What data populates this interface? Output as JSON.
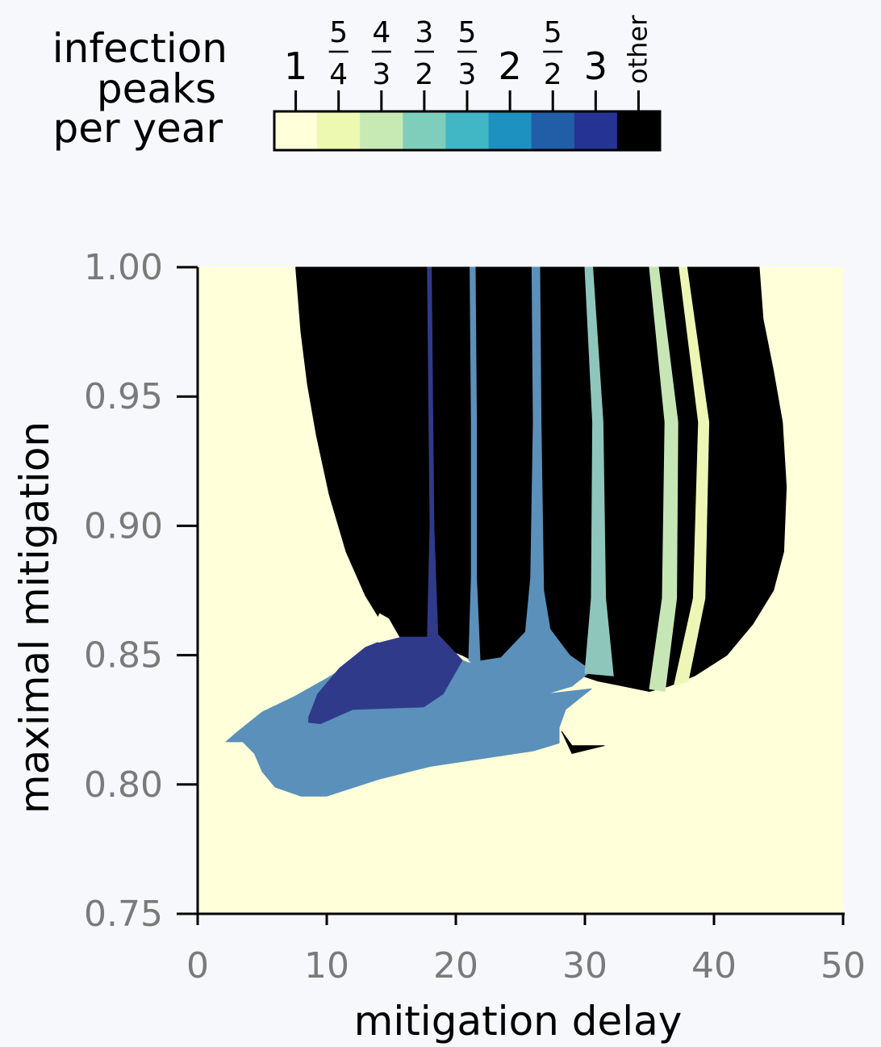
{
  "colors": {
    "background": "#f7f8fb",
    "other": "#000000",
    "axis": "#000000",
    "tick_label": "#7a7a7a"
  },
  "legend": {
    "title_lines": [
      "infection",
      "peaks",
      "per year"
    ],
    "bins": [
      {
        "label": "1",
        "color": "#ffffd9"
      },
      {
        "num": "5",
        "den": "4",
        "color": "#edf8b1"
      },
      {
        "num": "4",
        "den": "3",
        "color": "#c7e9b4"
      },
      {
        "num": "3",
        "den": "2",
        "color": "#7fcdbb"
      },
      {
        "num": "5",
        "den": "3",
        "color": "#41b6c4"
      },
      {
        "label": "2",
        "color": "#1d91c0"
      },
      {
        "num": "5",
        "den": "2",
        "color": "#225ea8"
      },
      {
        "label": "3",
        "color": "#253494"
      },
      {
        "label": "other",
        "color": "#000000"
      }
    ]
  },
  "chart_data": {
    "type": "heatmap",
    "xlabel": "mitigation delay",
    "ylabel": "maximal mitigation",
    "xlim": [
      0,
      50
    ],
    "ylim": [
      0.75,
      1.0
    ],
    "xticks": [
      "0",
      "10",
      "20",
      "30",
      "40",
      "50"
    ],
    "yticks": [
      "0.75",
      "0.80",
      "0.85",
      "0.90",
      "0.95",
      "1.00"
    ],
    "background_class": "1",
    "regions": [
      {
        "name": "other-region",
        "class": "other",
        "color": "#000000",
        "points": [
          [
            7.6,
            1.0
          ],
          [
            8.0,
            0.975
          ],
          [
            8.5,
            0.955
          ],
          [
            9.2,
            0.935
          ],
          [
            10.2,
            0.912
          ],
          [
            11.5,
            0.89
          ],
          [
            13.0,
            0.873
          ],
          [
            14.6,
            0.86
          ],
          [
            16.0,
            0.856
          ],
          [
            17.8,
            0.855
          ],
          [
            19.0,
            0.853
          ],
          [
            20.5,
            0.85
          ],
          [
            22.0,
            0.846
          ],
          [
            23.8,
            0.845
          ],
          [
            25.5,
            0.847
          ],
          [
            27.0,
            0.852
          ],
          [
            28.3,
            0.848
          ],
          [
            29.8,
            0.842
          ],
          [
            31.0,
            0.84
          ],
          [
            33.0,
            0.838
          ],
          [
            35.0,
            0.836
          ],
          [
            36.5,
            0.838
          ],
          [
            38.5,
            0.842
          ],
          [
            41.0,
            0.85
          ],
          [
            43.0,
            0.862
          ],
          [
            44.6,
            0.875
          ],
          [
            45.4,
            0.89
          ],
          [
            45.6,
            0.915
          ],
          [
            45.3,
            0.94
          ],
          [
            44.6,
            0.96
          ],
          [
            43.8,
            0.98
          ],
          [
            43.5,
            1.0
          ]
        ]
      },
      {
        "name": "two-peaks-region",
        "class": "2",
        "color": "#5b90bb",
        "points": [
          [
            2.2,
            0.8165
          ],
          [
            3.0,
            0.82
          ],
          [
            5.0,
            0.828
          ],
          [
            7.5,
            0.834
          ],
          [
            10.0,
            0.841
          ],
          [
            12.0,
            0.847
          ],
          [
            13.5,
            0.852
          ],
          [
            15.0,
            0.855
          ],
          [
            17.8,
            0.855
          ],
          [
            19.0,
            0.851
          ],
          [
            21.0,
            0.847
          ],
          [
            23.5,
            0.849
          ],
          [
            25.4,
            0.859
          ],
          [
            25.8,
            0.88
          ],
          [
            26.0,
            0.94
          ],
          [
            25.9,
            1.0
          ],
          [
            26.5,
            1.0
          ],
          [
            26.6,
            0.94
          ],
          [
            26.8,
            0.875
          ],
          [
            27.3,
            0.86
          ],
          [
            28.8,
            0.85
          ],
          [
            30.5,
            0.844
          ],
          [
            29.0,
            0.838
          ],
          [
            27.0,
            0.835
          ],
          [
            30.5,
            0.837
          ],
          [
            28.5,
            0.829
          ],
          [
            28.0,
            0.822
          ],
          [
            28.0,
            0.816
          ],
          [
            26.0,
            0.813
          ],
          [
            22.0,
            0.81
          ],
          [
            18.0,
            0.807
          ],
          [
            14.0,
            0.802
          ],
          [
            10.0,
            0.7955
          ],
          [
            8.0,
            0.7955
          ],
          [
            6.0,
            0.799
          ],
          [
            5.0,
            0.805
          ],
          [
            4.4,
            0.812
          ],
          [
            3.5,
            0.8165
          ]
        ]
      },
      {
        "name": "three-peaks-region",
        "class": "3",
        "color": "#303a8a",
        "points": [
          [
            8.6,
            0.826
          ],
          [
            9.3,
            0.835
          ],
          [
            11.0,
            0.845
          ],
          [
            13.0,
            0.853
          ],
          [
            15.0,
            0.857
          ],
          [
            17.8,
            0.857
          ],
          [
            18.0,
            0.9
          ],
          [
            17.8,
            1.0
          ],
          [
            18.1,
            1.0
          ],
          [
            18.3,
            0.9
          ],
          [
            18.6,
            0.858
          ],
          [
            20.5,
            0.848
          ],
          [
            19.0,
            0.835
          ],
          [
            17.5,
            0.83
          ],
          [
            12.0,
            0.829
          ],
          [
            9.5,
            0.8235
          ],
          [
            8.6,
            0.824
          ]
        ]
      },
      {
        "name": "hole-region",
        "class": "1",
        "color": "#ffffd9",
        "points": [
          [
            13.6,
            0.86
          ],
          [
            14.1,
            0.866
          ],
          [
            14.8,
            0.864
          ],
          [
            15.6,
            0.857
          ],
          [
            14.0,
            0.855
          ]
        ]
      },
      {
        "name": "other-tail-region",
        "class": "other",
        "color": "#000000",
        "points": [
          [
            28.2,
            0.8205
          ],
          [
            29.0,
            0.815
          ],
          [
            31.5,
            0.815
          ],
          [
            29.0,
            0.812
          ]
        ]
      },
      {
        "name": "two-peaks-stripe-region",
        "class": "2",
        "color": "#5b90bb",
        "points": [
          [
            21.0,
            0.848
          ],
          [
            21.2,
            0.88
          ],
          [
            21.2,
            0.94
          ],
          [
            21.1,
            1.0
          ],
          [
            21.5,
            1.0
          ],
          [
            21.6,
            0.94
          ],
          [
            21.6,
            0.88
          ],
          [
            21.9,
            0.845
          ]
        ]
      },
      {
        "name": "three-halves-stripe-region",
        "class": "3/2",
        "color": "#8fc6bc",
        "points": [
          [
            30.0,
            0.843
          ],
          [
            30.5,
            0.872
          ],
          [
            30.6,
            0.94
          ],
          [
            30.0,
            1.0
          ],
          [
            30.6,
            1.0
          ],
          [
            31.4,
            0.94
          ],
          [
            31.6,
            0.872
          ],
          [
            32.2,
            0.842
          ]
        ]
      },
      {
        "name": "four-thirds-stripe-region",
        "class": "4/3",
        "color": "#c7e6b6",
        "points": [
          [
            35.0,
            0.837
          ],
          [
            36.0,
            0.872
          ],
          [
            36.2,
            0.94
          ],
          [
            35.0,
            1.0
          ],
          [
            35.7,
            1.0
          ],
          [
            37.2,
            0.94
          ],
          [
            37.1,
            0.872
          ],
          [
            36.2,
            0.836
          ]
        ]
      },
      {
        "name": "five-fourths-stripe-region",
        "class": "5/4",
        "color": "#edf6b4",
        "points": [
          [
            36.9,
            0.838
          ],
          [
            38.4,
            0.872
          ],
          [
            38.8,
            0.94
          ],
          [
            37.3,
            1.0
          ],
          [
            37.9,
            1.0
          ],
          [
            39.6,
            0.94
          ],
          [
            39.3,
            0.872
          ],
          [
            38.0,
            0.84
          ]
        ]
      }
    ]
  }
}
